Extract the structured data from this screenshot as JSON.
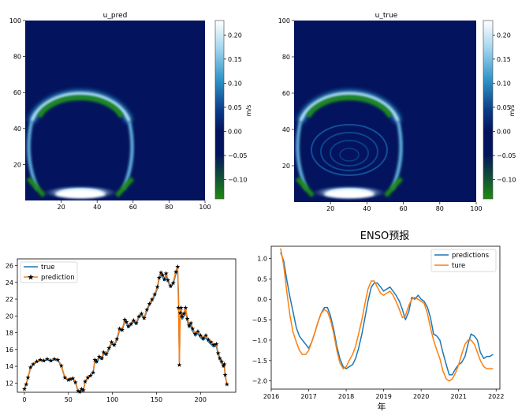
{
  "colors": {
    "ocean_deep": "#03135e",
    "ring_light": "#eaf6ff",
    "ring_mid": "#1d8fc4",
    "negative_green": "#1f8a12",
    "series_blue": "#1f77b4",
    "series_orange": "#ff7f0e"
  },
  "chart_data": [
    {
      "type": "heatmap",
      "title": "u_pred",
      "xticks": [
        20,
        40,
        60,
        80,
        100
      ],
      "yticks": [
        20,
        40,
        60,
        80,
        100
      ],
      "xlim": [
        0,
        100
      ],
      "ylim": [
        0,
        100
      ],
      "colorbar": {
        "label": "m/s",
        "ticks": [
          "0.20",
          "0.15",
          "0.10",
          "0.05",
          "0.00",
          "−0.05",
          "−0.10"
        ],
        "range": [
          -0.14,
          0.23
        ]
      }
    },
    {
      "type": "heatmap",
      "title": "u_true",
      "xticks": [
        20,
        40,
        60,
        80,
        100
      ],
      "yticks": [
        20,
        40,
        60,
        80,
        100
      ],
      "xlim": [
        0,
        100
      ],
      "ylim": [
        0,
        100
      ],
      "colorbar": {
        "label": "m/s",
        "ticks": [
          "0.20",
          "0.15",
          "0.10",
          "0.05",
          "0.00",
          "−0.05",
          "−0.10"
        ],
        "range": [
          -0.14,
          0.23
        ]
      }
    },
    {
      "type": "line",
      "title": "",
      "xlim": [
        -8,
        240
      ],
      "ylim": [
        10.9,
        26.8
      ],
      "xticks": [
        0,
        50,
        100,
        150,
        200
      ],
      "yticks": [
        12,
        14,
        16,
        18,
        20,
        22,
        24,
        26
      ],
      "legend_position": "top-left",
      "x": [
        0,
        2,
        4,
        7,
        10,
        14,
        18,
        22,
        26,
        30,
        34,
        38,
        42,
        46,
        50,
        52,
        55,
        58,
        61,
        63,
        65,
        67,
        69,
        72,
        75,
        78,
        80,
        82,
        85,
        88,
        90,
        93,
        96,
        99,
        102,
        105,
        108,
        111,
        114,
        116,
        118,
        121,
        124,
        127,
        130,
        133,
        136,
        139,
        142,
        145,
        148,
        151,
        153,
        155,
        157,
        159,
        161,
        163,
        166,
        169,
        172,
        174,
        175,
        176,
        177,
        178,
        179,
        181,
        183,
        185,
        187,
        189,
        191,
        194,
        197,
        200,
        203,
        206,
        209,
        212,
        215,
        218,
        220,
        222,
        224,
        226,
        227,
        228,
        230
      ],
      "series": [
        {
          "name": "true",
          "values": [
            11.2,
            11.8,
            12.6,
            13.8,
            14.2,
            14.5,
            14.7,
            14.6,
            14.8,
            14.6,
            14.8,
            14.7,
            14.0,
            12.6,
            12.3,
            12.4,
            12.5,
            12.0,
            11.0,
            10.9,
            11.2,
            11.1,
            12.1,
            12.6,
            12.8,
            13.2,
            14.6,
            14.4,
            15.0,
            14.8,
            15.5,
            15.3,
            16.0,
            16.7,
            16.4,
            17.1,
            18.3,
            18.2,
            19.4,
            19.1,
            18.6,
            18.9,
            19.3,
            19.0,
            19.8,
            20.1,
            19.6,
            20.6,
            21.3,
            21.8,
            22.4,
            23.3,
            24.4,
            24.9,
            24.6,
            24.2,
            24.8,
            24.1,
            23.4,
            23.8,
            25.0,
            25.4,
            22.5,
            14.5,
            19.8,
            20.3,
            19.6,
            19.9,
            20.6,
            19.4,
            18.6,
            18.9,
            18.2,
            17.6,
            17.9,
            17.4,
            17.1,
            17.4,
            16.9,
            16.6,
            16.3,
            16.4,
            15.4,
            14.8,
            14.4,
            13.9,
            14.0,
            12.8,
            11.9
          ]
        },
        {
          "name": "prediction",
          "values": [
            11.3,
            11.9,
            12.7,
            13.9,
            14.3,
            14.6,
            14.8,
            14.7,
            14.9,
            14.7,
            14.9,
            14.8,
            14.1,
            12.7,
            12.4,
            12.5,
            12.6,
            12.1,
            11.1,
            11.0,
            11.3,
            11.2,
            12.2,
            12.7,
            12.9,
            13.3,
            14.8,
            14.6,
            15.2,
            15.0,
            15.7,
            15.5,
            16.2,
            16.9,
            16.6,
            17.3,
            18.5,
            18.4,
            19.6,
            19.3,
            18.8,
            19.1,
            19.5,
            19.2,
            20.0,
            20.3,
            19.8,
            20.8,
            21.5,
            22.0,
            22.6,
            23.5,
            24.6,
            25.2,
            24.9,
            24.4,
            25.1,
            24.3,
            23.6,
            24.0,
            25.3,
            25.9,
            21.0,
            14.2,
            20.4,
            21.0,
            20.0,
            20.3,
            21.0,
            19.7,
            18.9,
            19.2,
            18.5,
            17.9,
            18.2,
            17.7,
            17.4,
            17.7,
            17.2,
            16.9,
            16.6,
            16.7,
            15.6,
            15.0,
            14.6,
            14.1,
            14.3,
            13.0,
            11.9
          ]
        }
      ]
    },
    {
      "type": "line",
      "title": "ENSO预报",
      "xlabel": "年",
      "xlim": [
        2016.0,
        2022.1
      ],
      "ylim": [
        -2.2,
        1.3
      ],
      "xticks": [
        2016,
        2017,
        2018,
        2019,
        2020,
        2021,
        2022
      ],
      "yticks": [
        1.0,
        0.5,
        0.0,
        -0.5,
        -1.0,
        -1.5,
        -2.0
      ],
      "ytick_labels": [
        "1.0",
        "0.5",
        "0.0",
        "−0.5",
        "−1.0",
        "−1.5",
        "−2.0"
      ],
      "legend_position": "top-right",
      "x": [
        2016.25,
        2016.33,
        2016.42,
        2016.5,
        2016.58,
        2016.67,
        2016.75,
        2016.83,
        2016.92,
        2017.0,
        2017.08,
        2017.17,
        2017.25,
        2017.33,
        2017.42,
        2017.5,
        2017.58,
        2017.67,
        2017.75,
        2017.83,
        2017.92,
        2018.0,
        2018.08,
        2018.17,
        2018.25,
        2018.33,
        2018.42,
        2018.5,
        2018.58,
        2018.67,
        2018.75,
        2018.83,
        2018.92,
        2019.0,
        2019.08,
        2019.17,
        2019.25,
        2019.33,
        2019.42,
        2019.5,
        2019.58,
        2019.67,
        2019.75,
        2019.83,
        2019.92,
        2020.0,
        2020.08,
        2020.17,
        2020.25,
        2020.33,
        2020.42,
        2020.5,
        2020.58,
        2020.67,
        2020.75,
        2020.83,
        2020.92,
        2021.0,
        2021.08,
        2021.17,
        2021.25,
        2021.33,
        2021.42,
        2021.5,
        2021.58,
        2021.67,
        2021.75,
        2021.83,
        2021.92
      ],
      "series": [
        {
          "name": "predictions",
          "values": [
            1.15,
            0.95,
            0.45,
            0.05,
            -0.3,
            -0.7,
            -0.9,
            -1.0,
            -1.1,
            -1.2,
            -1.05,
            -0.8,
            -0.55,
            -0.35,
            -0.2,
            -0.2,
            -0.4,
            -0.75,
            -1.15,
            -1.45,
            -1.65,
            -1.7,
            -1.65,
            -1.6,
            -1.45,
            -1.2,
            -0.85,
            -0.45,
            -0.05,
            0.3,
            0.4,
            0.4,
            0.3,
            0.2,
            0.25,
            0.3,
            0.2,
            0.1,
            -0.05,
            -0.25,
            -0.5,
            -0.3,
            0.05,
            0.0,
            0.1,
            0.0,
            -0.05,
            -0.2,
            -0.45,
            -0.85,
            -0.9,
            -1.0,
            -1.3,
            -1.6,
            -1.85,
            -1.85,
            -1.7,
            -1.6,
            -1.55,
            -1.4,
            -1.1,
            -0.85,
            -0.9,
            -1.0,
            -1.3,
            -1.45,
            -1.4,
            -1.4,
            -1.35
          ]
        },
        {
          "name": "ture",
          "values": [
            1.25,
            0.85,
            0.15,
            -0.4,
            -0.8,
            -1.05,
            -1.25,
            -1.35,
            -1.35,
            -1.25,
            -1.05,
            -0.8,
            -0.55,
            -0.35,
            -0.25,
            -0.3,
            -0.5,
            -0.85,
            -1.25,
            -1.55,
            -1.7,
            -1.65,
            -1.5,
            -1.35,
            -1.15,
            -0.85,
            -0.5,
            -0.1,
            0.25,
            0.45,
            0.45,
            0.3,
            0.15,
            0.1,
            0.15,
            0.2,
            0.1,
            -0.05,
            -0.25,
            -0.45,
            -0.4,
            -0.15,
            0.0,
            0.05,
            0.0,
            -0.05,
            -0.1,
            -0.35,
            -0.7,
            -1.0,
            -1.25,
            -1.45,
            -1.75,
            -1.95,
            -2.0,
            -1.95,
            -1.8,
            -1.6,
            -1.35,
            -1.1,
            -1.0,
            -1.0,
            -1.1,
            -1.3,
            -1.5,
            -1.65,
            -1.7,
            -1.7,
            -1.7
          ]
        }
      ]
    }
  ]
}
